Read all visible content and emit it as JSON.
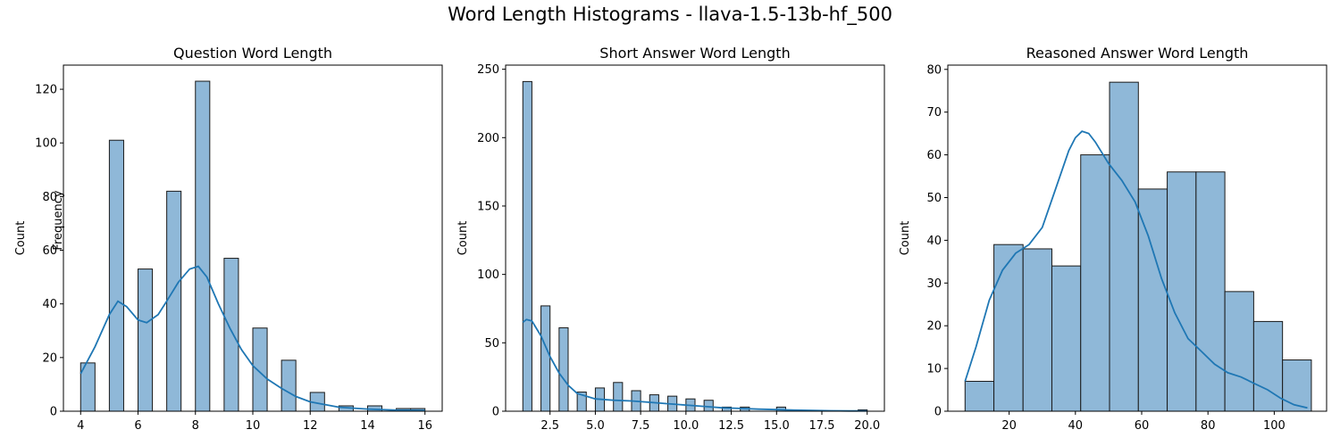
{
  "suptitle": "Word Length Histograms - llava-1.5-13b-hf_500",
  "colors": {
    "bar_fill": "#8fb8d8",
    "bar_edge": "#1a1a1a",
    "kde": "#1f77b4",
    "axis": "#000000"
  },
  "chart_data": [
    {
      "type": "bar",
      "title": "Question Word Length",
      "xlabel": "",
      "ylabel": "Count",
      "extra_label": "Frequency",
      "xlim": [
        3.4,
        16.6
      ],
      "ylim": [
        0,
        129
      ],
      "xticks": [
        4,
        6,
        8,
        10,
        12,
        14,
        16
      ],
      "xtick_labels": [
        "4",
        "6",
        "8",
        "10",
        "12",
        "14",
        "16"
      ],
      "yticks": [
        0,
        20,
        40,
        60,
        80,
        100,
        120
      ],
      "ytick_labels": [
        "0",
        "20",
        "40",
        "60",
        "80",
        "100",
        "120"
      ],
      "bins": [
        {
          "x0": 4.0,
          "x1": 4.5,
          "count": 18
        },
        {
          "x0": 5.0,
          "x1": 5.5,
          "count": 101
        },
        {
          "x0": 6.0,
          "x1": 6.5,
          "count": 53
        },
        {
          "x0": 7.0,
          "x1": 7.5,
          "count": 82
        },
        {
          "x0": 8.0,
          "x1": 8.5,
          "count": 123
        },
        {
          "x0": 9.0,
          "x1": 9.5,
          "count": 57
        },
        {
          "x0": 10.0,
          "x1": 10.5,
          "count": 31
        },
        {
          "x0": 11.0,
          "x1": 11.5,
          "count": 19
        },
        {
          "x0": 12.0,
          "x1": 12.5,
          "count": 7
        },
        {
          "x0": 13.0,
          "x1": 13.5,
          "count": 2
        },
        {
          "x0": 14.0,
          "x1": 14.5,
          "count": 2
        },
        {
          "x0": 15.0,
          "x1": 15.5,
          "count": 1
        },
        {
          "x0": 15.5,
          "x1": 16.0,
          "count": 1
        }
      ],
      "kde": [
        [
          4.0,
          14
        ],
        [
          4.5,
          24
        ],
        [
          5.0,
          36
        ],
        [
          5.3,
          41
        ],
        [
          5.6,
          39
        ],
        [
          6.0,
          34
        ],
        [
          6.3,
          33
        ],
        [
          6.7,
          36
        ],
        [
          7.0,
          41
        ],
        [
          7.4,
          48
        ],
        [
          7.8,
          53
        ],
        [
          8.1,
          54
        ],
        [
          8.4,
          50
        ],
        [
          8.8,
          40
        ],
        [
          9.2,
          31
        ],
        [
          9.6,
          23
        ],
        [
          10.0,
          17
        ],
        [
          10.5,
          12
        ],
        [
          11.0,
          8.5
        ],
        [
          11.5,
          5.5
        ],
        [
          12.0,
          3.5
        ],
        [
          13.0,
          1.5
        ],
        [
          14.0,
          0.8
        ],
        [
          15.0,
          0.4
        ],
        [
          16.0,
          0.3
        ]
      ]
    },
    {
      "type": "bar",
      "title": "Short Answer Word Length",
      "xlabel": "",
      "ylabel": "Count",
      "xlim": [
        0.05,
        20.95
      ],
      "ylim": [
        0,
        253
      ],
      "xticks": [
        2.5,
        5.0,
        7.5,
        10.0,
        12.5,
        15.0,
        17.5,
        20.0
      ],
      "xtick_labels": [
        "2.5",
        "5.0",
        "7.5",
        "10.0",
        "12.5",
        "15.0",
        "17.5",
        "20.0"
      ],
      "yticks": [
        0,
        50,
        100,
        150,
        200,
        250
      ],
      "ytick_labels": [
        "0",
        "50",
        "100",
        "150",
        "200",
        "250"
      ],
      "bins": [
        {
          "x0": 1.0,
          "x1": 1.5,
          "count": 241
        },
        {
          "x0": 2.0,
          "x1": 2.5,
          "count": 77
        },
        {
          "x0": 3.0,
          "x1": 3.5,
          "count": 61
        },
        {
          "x0": 4.0,
          "x1": 4.5,
          "count": 14
        },
        {
          "x0": 5.0,
          "x1": 5.5,
          "count": 17
        },
        {
          "x0": 6.0,
          "x1": 6.5,
          "count": 21
        },
        {
          "x0": 7.0,
          "x1": 7.5,
          "count": 15
        },
        {
          "x0": 8.0,
          "x1": 8.5,
          "count": 12
        },
        {
          "x0": 9.0,
          "x1": 9.5,
          "count": 11
        },
        {
          "x0": 10.0,
          "x1": 10.5,
          "count": 9
        },
        {
          "x0": 11.0,
          "x1": 11.5,
          "count": 8
        },
        {
          "x0": 12.0,
          "x1": 12.5,
          "count": 3
        },
        {
          "x0": 13.0,
          "x1": 13.5,
          "count": 3
        },
        {
          "x0": 15.0,
          "x1": 15.5,
          "count": 3
        },
        {
          "x0": 19.5,
          "x1": 20.0,
          "count": 1
        }
      ],
      "kde": [
        [
          1.0,
          65
        ],
        [
          1.2,
          67
        ],
        [
          1.5,
          66
        ],
        [
          2.0,
          55
        ],
        [
          2.5,
          40
        ],
        [
          3.0,
          28
        ],
        [
          3.5,
          19
        ],
        [
          4.0,
          13
        ],
        [
          5.0,
          9
        ],
        [
          6.0,
          8
        ],
        [
          7.0,
          7.5
        ],
        [
          8.0,
          6.5
        ],
        [
          9.0,
          5.5
        ],
        [
          10.0,
          4.5
        ],
        [
          11.0,
          3.5
        ],
        [
          12.0,
          2.5
        ],
        [
          13.0,
          2
        ],
        [
          14.0,
          1.5
        ],
        [
          15.0,
          1.2
        ],
        [
          16.0,
          0.8
        ],
        [
          17.0,
          0.5
        ],
        [
          18.0,
          0.3
        ],
        [
          19.0,
          0.2
        ],
        [
          20.0,
          0.2
        ]
      ]
    },
    {
      "type": "bar",
      "title": "Reasoned Answer Word Length",
      "xlabel": "",
      "ylabel": "Count",
      "xlim": [
        1.5,
        115.8
      ],
      "ylim": [
        0,
        81
      ],
      "xticks": [
        20,
        40,
        60,
        80,
        100
      ],
      "xtick_labels": [
        "20",
        "40",
        "60",
        "80",
        "100"
      ],
      "yticks": [
        0,
        10,
        20,
        30,
        40,
        50,
        60,
        70,
        80
      ],
      "ytick_labels": [
        "0",
        "10",
        "20",
        "30",
        "40",
        "50",
        "60",
        "70",
        "80"
      ],
      "bins": [
        {
          "x0": 6.7,
          "x1": 15.4,
          "count": 7
        },
        {
          "x0": 15.4,
          "x1": 24.2,
          "count": 39
        },
        {
          "x0": 24.2,
          "x1": 32.9,
          "count": 38
        },
        {
          "x0": 32.9,
          "x1": 41.6,
          "count": 34
        },
        {
          "x0": 41.6,
          "x1": 50.3,
          "count": 60
        },
        {
          "x0": 50.3,
          "x1": 59.0,
          "count": 77
        },
        {
          "x0": 59.0,
          "x1": 67.7,
          "count": 52
        },
        {
          "x0": 67.7,
          "x1": 76.4,
          "count": 56
        },
        {
          "x0": 76.4,
          "x1": 85.1,
          "count": 56
        },
        {
          "x0": 85.1,
          "x1": 93.8,
          "count": 28
        },
        {
          "x0": 93.8,
          "x1": 102.5,
          "count": 21
        },
        {
          "x0": 102.5,
          "x1": 111.2,
          "count": 12
        }
      ],
      "kde": [
        [
          6.7,
          7
        ],
        [
          10,
          15
        ],
        [
          14,
          26
        ],
        [
          18,
          33
        ],
        [
          22,
          37
        ],
        [
          26,
          39
        ],
        [
          30,
          43
        ],
        [
          34,
          52
        ],
        [
          38,
          61
        ],
        [
          40,
          64
        ],
        [
          42,
          65.5
        ],
        [
          44,
          65
        ],
        [
          46,
          63
        ],
        [
          50,
          58
        ],
        [
          54,
          54
        ],
        [
          58,
          49
        ],
        [
          62,
          41
        ],
        [
          66,
          31
        ],
        [
          70,
          23
        ],
        [
          74,
          17
        ],
        [
          78,
          14
        ],
        [
          82,
          11
        ],
        [
          86,
          9
        ],
        [
          90,
          8
        ],
        [
          94,
          6.5
        ],
        [
          98,
          5
        ],
        [
          102,
          3
        ],
        [
          106,
          1.5
        ],
        [
          110,
          0.8
        ]
      ]
    }
  ]
}
